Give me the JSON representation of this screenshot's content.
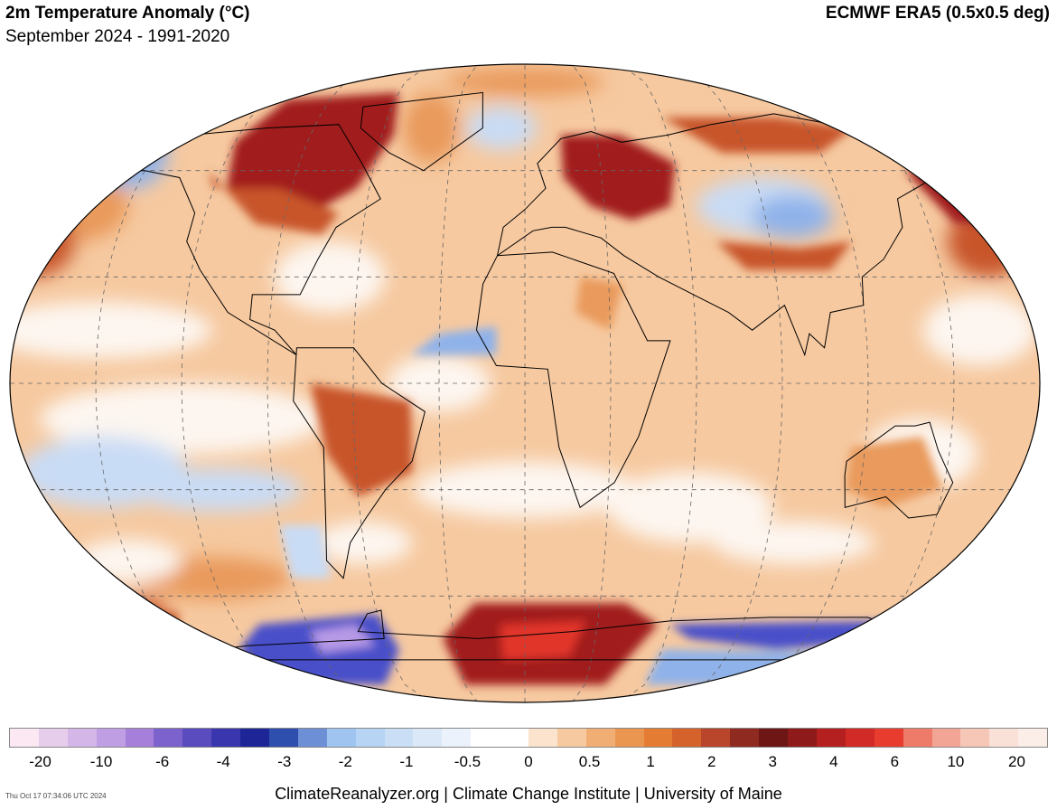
{
  "header": {
    "title": "2m Temperature Anomaly (°C)",
    "subtitle": "September 2024 - 1991-2020",
    "dataset": "ECMWF ERA5 (0.5x0.5 deg)"
  },
  "map": {
    "projection": "Robinson-like ellipse",
    "graticule_spacing_deg": 30,
    "colors": {
      "ocean_neutral": "#fdf6f0",
      "warm_light": "#f6c9a0",
      "warm_mid": "#e99a5c",
      "warm_strong": "#c8552a",
      "hot": "#a11d1d",
      "hottest": "#e2362a",
      "cool_light": "#c9dcf5",
      "cool_mid": "#8fb2ea",
      "cold": "#4a4fc9",
      "coldest": "#b79ae6",
      "coast": "#000000"
    }
  },
  "colorbar": {
    "colors": [
      "#fbe8f2",
      "#e6cdec",
      "#d4b6e8",
      "#c09ee3",
      "#a57fd9",
      "#7c62cc",
      "#5a4cbf",
      "#3a37ae",
      "#1e2596",
      "#2e4fae",
      "#6c8fd6",
      "#9ec4ef",
      "#b7d4f4",
      "#cadff6",
      "#dbe8f8",
      "#ebf2fb",
      "#ffffff",
      "#ffffff",
      "#fbe3cd",
      "#f6c9a0",
      "#f0ae74",
      "#ea9550",
      "#e47d33",
      "#d5622a",
      "#b9462a",
      "#8e2a20",
      "#6e1515",
      "#8e1a1a",
      "#b41f1f",
      "#d22a26",
      "#e73c2e",
      "#ee7b6a",
      "#f2a594",
      "#f6c7b7",
      "#f9e1d7",
      "#fbede7"
    ],
    "tick_labels": [
      "-20",
      "-10",
      "-6",
      "-4",
      "-3",
      "-2",
      "-1",
      "-0.5",
      "0",
      "0.5",
      "1",
      "2",
      "3",
      "4",
      "6",
      "10",
      "20"
    ]
  },
  "footer": {
    "timestamp": "Thu Oct 17 07:34:06 UTC 2024",
    "credit": "ClimateReanalyzer.org | Climate Change Institute | University of Maine"
  }
}
